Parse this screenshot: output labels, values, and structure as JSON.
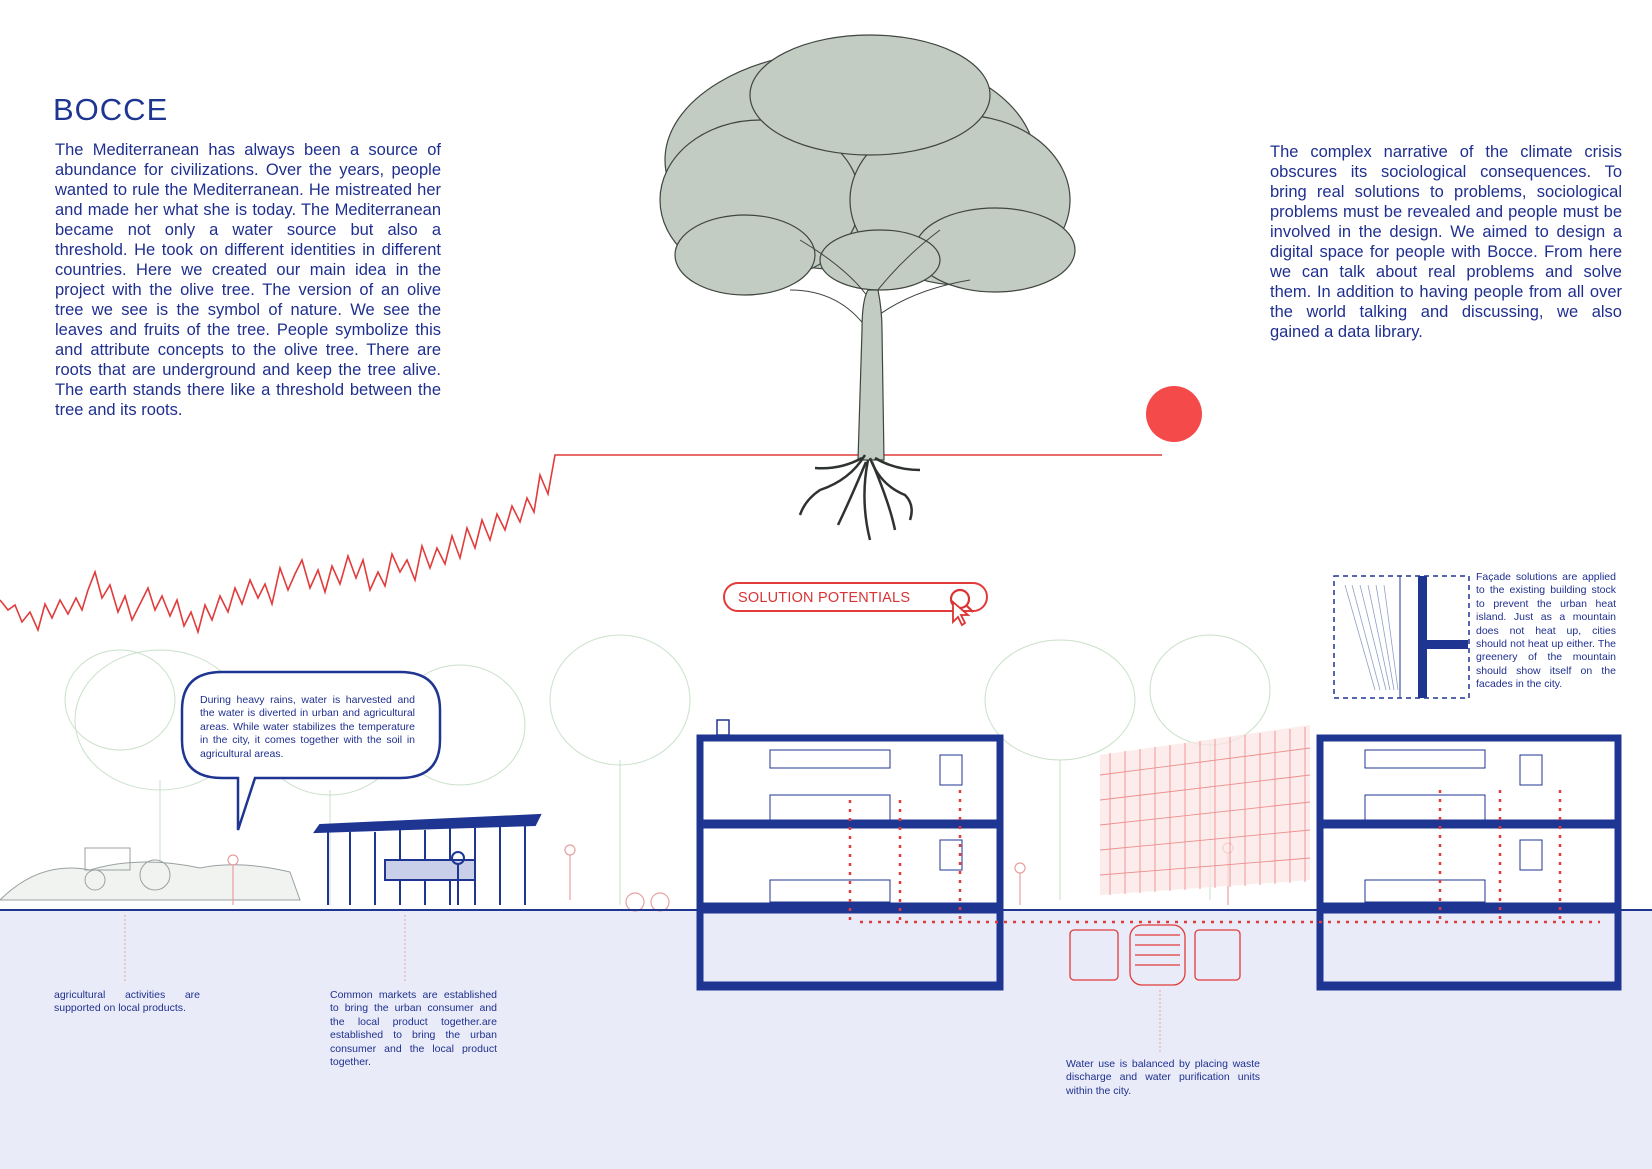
{
  "poster": {
    "title": "BOCCE",
    "intro_text": "The Mediterranean has always been a source of abundance for civilizations. Over the years, people wanted to rule the Mediterranean. He mistreated her and made her what she is today. The Mediterranean became not only a water source but also a threshold. He took on different identities in different countries. Here we created our main idea in the project with the olive tree. The version of an olive tree we see is the symbol of nature. We see the leaves and fruits of the tree. People symbolize this and attribute concepts to the olive tree. There are roots that are underground and keep the tree alive. The earth stands there like a threshold between the tree and its roots.",
    "climate_text": "The complex narrative of the climate crisis obscures its sociological consequences. To bring real solutions to problems, sociological problems must be revealed and people must be involved in the design. We aimed to design a digital space for people with Bocce. From here we can talk about real problems and solve them. In addition to having people from all over the world talking and discussing, we also gained a data library."
  },
  "button": {
    "label": "SOLUTION POTENTIALS",
    "icon": "search-cursor-icon"
  },
  "annotations": {
    "rain": "During heavy rains, water is harvested and the water is diverted in urban and agricultural areas. While water stabilizes the temperature in the city, it comes together with the soil in agricultural areas.",
    "facade": "Façade solutions are applied to the existing building stock to prevent the urban heat island. Just as a mountain does not heat up, cities should not heat up either. The greenery of the mountain should show itself on the facades in the city.",
    "agriculture": "agricultural activities are supported on local products.",
    "market": "Common markets are established to bring the urban consumer and the local product together.are established to bring the urban consumer and the local product together.",
    "water": "Water use is balanced by placing waste discharge and water purification units within the city."
  },
  "colors": {
    "navy": "#1f3592",
    "red": "#e23b3b",
    "sun": "#f54a4a",
    "ground": "#e9ecf8",
    "foliage": "#c3ccc2"
  }
}
